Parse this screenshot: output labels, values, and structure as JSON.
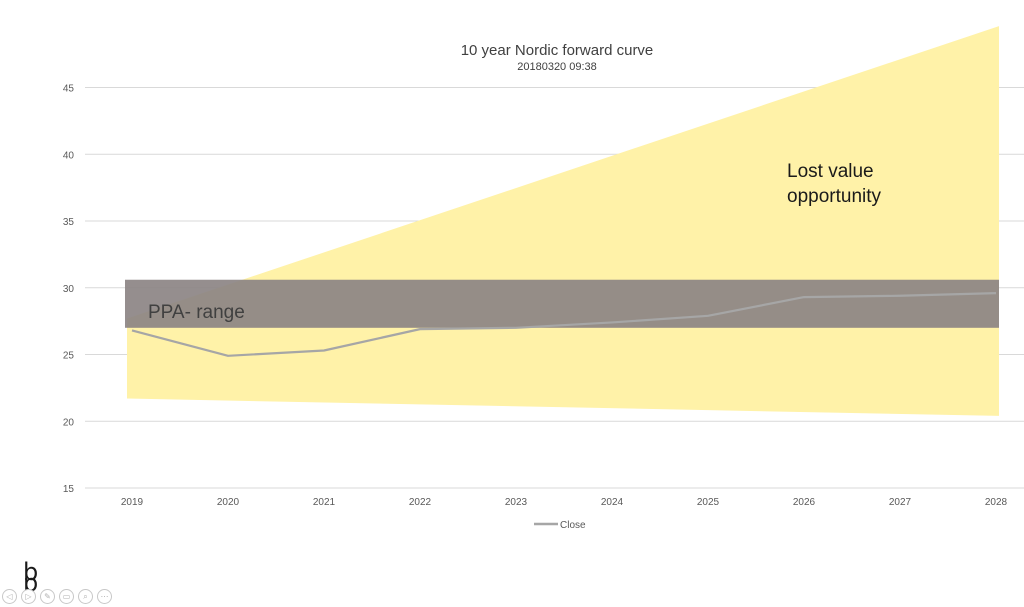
{
  "chart_data": {
    "type": "line",
    "title": "10 year Nordic forward curve",
    "subtitle": "20180320 09:38",
    "categories": [
      "2019",
      "2020",
      "2021",
      "2022",
      "2023",
      "2024",
      "2025",
      "2026",
      "2027",
      "2028"
    ],
    "series": [
      {
        "name": "Close",
        "color": "#a6a6a6",
        "values": [
          26.8,
          24.9,
          25.3,
          26.9,
          27.0,
          27.4,
          27.9,
          29.3,
          29.4,
          29.6
        ]
      }
    ],
    "ylim": [
      15,
      47
    ],
    "yticks": [
      15,
      20,
      25,
      30,
      35,
      40,
      45
    ],
    "grid": true,
    "legend_placement": "bottom",
    "bands": [
      {
        "label": "Lost value opportunity",
        "color": "#fff2a8",
        "upper_start": 27.7,
        "upper_end": 49.6,
        "lower_start": 21.7,
        "lower_end": 20.4
      },
      {
        "label": "PPA- range",
        "color": "#8c8484",
        "low": 27.0,
        "high": 30.6
      }
    ]
  },
  "annotations": {
    "lost_value_line1": "Lost value",
    "lost_value_line2": "opportunity",
    "ppa_range": "PPA- range"
  },
  "logo": {
    "letter_top": "b",
    "letter_bottom": "p"
  },
  "toolbar": {
    "buttons": [
      {
        "icon": "back-arrow-icon",
        "glyph": "◁"
      },
      {
        "icon": "forward-arrow-icon",
        "glyph": "▷"
      },
      {
        "icon": "pen-icon",
        "glyph": "✎"
      },
      {
        "icon": "slides-icon",
        "glyph": "▭"
      },
      {
        "icon": "zoom-icon",
        "glyph": "⌕"
      },
      {
        "icon": "more-icon",
        "glyph": "⋯"
      }
    ]
  }
}
